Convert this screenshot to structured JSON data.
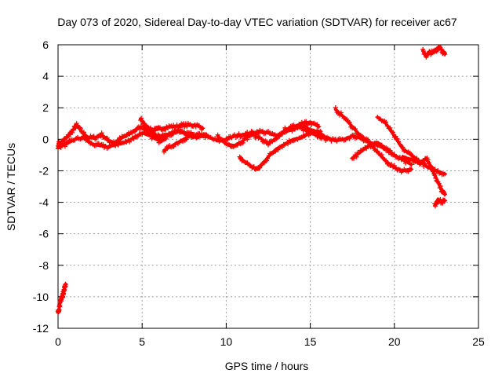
{
  "chart_data": {
    "type": "scatter",
    "title": "Day 073 of 2020, Sidereal Day-to-day VTEC variation (SDTVAR) for receiver ac67",
    "xlabel": "GPS time / hours",
    "ylabel": "SDTVAR / TECUs",
    "xlim": [
      0,
      25
    ],
    "ylim": [
      -12,
      6
    ],
    "xticks": [
      0,
      5,
      10,
      15,
      20,
      25
    ],
    "xtick_labels": [
      "0",
      "5",
      "10",
      "15",
      "20",
      "25"
    ],
    "yticks": [
      -12,
      -10,
      -8,
      -6,
      -4,
      -2,
      0,
      2,
      4,
      6
    ],
    "ytick_labels": [
      "-12",
      "-10",
      "-8",
      "-6",
      "-4",
      "-2",
      "0",
      "2",
      "4",
      "6"
    ],
    "grid": true,
    "marker": "+",
    "color": "#ff0000",
    "series": [
      {
        "name": "trace-1",
        "x": [
          0,
          0.3,
          0.6,
          0.9,
          1.1,
          1.4,
          1.8,
          2.2,
          2.6,
          3.0,
          3.4,
          3.8,
          4.2,
          4.6,
          5.0,
          5.4,
          5.8,
          6.2,
          6.6,
          7.0,
          7.4,
          7.8,
          8.2,
          8.6
        ],
        "y": [
          -0.3,
          -0.1,
          0.2,
          0.6,
          0.9,
          0.5,
          0.1,
          0.1,
          0.3,
          -0.1,
          -0.2,
          0.1,
          0.3,
          0.6,
          0.8,
          0.5,
          0.6,
          0.7,
          0.8,
          0.8,
          0.9,
          0.9,
          0.9,
          0.7
        ]
      },
      {
        "name": "trace-2",
        "x": [
          0.0,
          0.5,
          1.0,
          1.5,
          2.0,
          2.5,
          3.0,
          3.5,
          4.0,
          4.5,
          5.0,
          5.5,
          6.0,
          6.5,
          7.0,
          7.5,
          8.0
        ],
        "y": [
          -0.5,
          -0.3,
          0.0,
          0.1,
          -0.3,
          -0.4,
          -0.5,
          -0.3,
          -0.2,
          0.1,
          0.4,
          0.2,
          -0.1,
          0.2,
          0.5,
          0.4,
          0.3
        ]
      },
      {
        "name": "trace-3",
        "x": [
          4.9,
          5.2,
          5.5,
          5.8,
          6.1,
          6.5,
          7.0,
          7.5,
          8.0,
          8.5,
          9.0,
          9.5,
          10.0,
          10.5,
          11.0,
          11.5,
          12.0,
          12.5,
          13.0,
          13.5,
          14.0,
          14.5,
          15.0,
          15.5,
          16.0
        ],
        "y": [
          1.3,
          0.9,
          0.6,
          0.3,
          0.1,
          0.3,
          0.5,
          0.4,
          0.2,
          0.3,
          0.1,
          -0.1,
          0.0,
          0.2,
          0.3,
          0.4,
          0.5,
          0.4,
          0.2,
          0.5,
          0.8,
          0.7,
          0.4,
          0.2,
          0.0
        ]
      },
      {
        "name": "trace-4",
        "x": [
          6.3,
          6.8,
          7.3,
          7.8,
          8.3,
          8.8
        ],
        "y": [
          -0.7,
          -0.4,
          -0.1,
          0.2,
          0.1,
          0.3
        ]
      },
      {
        "name": "trace-5",
        "x": [
          9.5,
          10.0,
          10.5,
          11.0,
          11.5,
          12.0,
          12.5,
          13.0,
          13.5,
          14.0,
          14.5,
          15.0,
          15.5
        ],
        "y": [
          0.2,
          -0.3,
          -0.4,
          -0.1,
          0.3,
          0.1,
          -0.3,
          0.1,
          0.5,
          0.6,
          1.0,
          1.1,
          0.8
        ]
      },
      {
        "name": "trace-6",
        "x": [
          10.8,
          11.2,
          11.6,
          11.9,
          12.2,
          12.6,
          13.0,
          13.5,
          14.0,
          14.5,
          15.0,
          15.6
        ],
        "y": [
          -1.2,
          -1.5,
          -1.8,
          -1.9,
          -1.5,
          -1.0,
          -0.6,
          -0.3,
          0.0,
          0.1,
          0.4,
          0.5
        ]
      },
      {
        "name": "trace-7",
        "x": [
          13.5,
          14.0,
          14.5,
          15.0,
          15.5,
          16.0,
          16.5,
          17.0,
          17.5,
          18.0,
          18.5,
          19.0,
          19.5,
          20.0,
          20.5,
          21.0
        ],
        "y": [
          0.6,
          0.8,
          0.9,
          0.6,
          0.3,
          0.1,
          -0.1,
          0.0,
          0.2,
          0.1,
          -0.2,
          -0.4,
          -0.6,
          -1.0,
          -1.3,
          -1.6
        ]
      },
      {
        "name": "trace-8",
        "x": [
          16.5,
          17.0,
          17.5,
          18.0,
          18.5,
          19.0,
          19.5,
          20.0,
          20.5,
          21.0
        ],
        "y": [
          1.9,
          1.4,
          0.8,
          0.2,
          -0.2,
          -0.8,
          -1.4,
          -1.8,
          -2.0,
          -1.9
        ]
      },
      {
        "name": "trace-9",
        "x": [
          17.5,
          18.0,
          18.5,
          19.0,
          19.5,
          20.0
        ],
        "y": [
          -1.2,
          -0.8,
          -0.4,
          -0.2,
          -0.6,
          -1.0
        ]
      },
      {
        "name": "trace-10",
        "x": [
          19.0,
          19.5,
          20.0,
          20.5,
          21.0,
          21.5,
          22.0,
          22.5,
          23.0
        ],
        "y": [
          1.4,
          1.0,
          0.2,
          -0.6,
          -1.0,
          -1.4,
          -1.8,
          -2.0,
          -2.2
        ]
      },
      {
        "name": "trace-11",
        "x": [
          20.5,
          21.0,
          21.5,
          21.9,
          22.2,
          22.5,
          22.8,
          23.0
        ],
        "y": [
          -1.1,
          -1.3,
          -1.5,
          -1.2,
          -1.8,
          -2.5,
          -3.2,
          -3.5
        ]
      },
      {
        "name": "trace-12",
        "x": [
          22.4,
          22.6,
          22.8,
          23.0
        ],
        "y": [
          -4.2,
          -3.8,
          -4.0,
          -3.9
        ]
      },
      {
        "name": "trace-13",
        "x": [
          21.7,
          21.9,
          22.1,
          22.3,
          22.5,
          22.7,
          22.9,
          23.0
        ],
        "y": [
          5.6,
          5.3,
          5.5,
          5.5,
          5.7,
          5.9,
          5.5,
          5.4
        ]
      },
      {
        "name": "trace-14",
        "x": [
          0.0,
          0.05,
          0.1,
          0.15,
          0.2,
          0.25,
          0.3,
          0.35,
          0.4,
          0.45
        ],
        "y": [
          -11.0,
          -10.8,
          -10.5,
          -10.3,
          -10.1,
          -10.0,
          -9.8,
          -9.6,
          -9.4,
          -9.2
        ]
      }
    ]
  }
}
